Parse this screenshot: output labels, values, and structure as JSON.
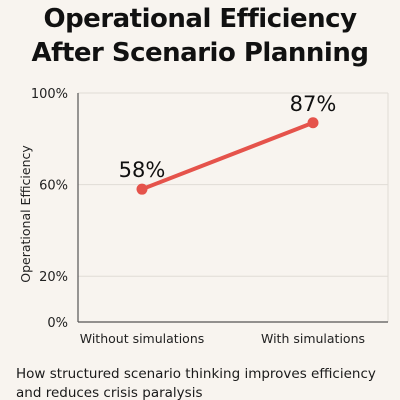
{
  "header": {
    "title_line_1": "Operational Efficiency",
    "title_line_2": "After Scenario Planning"
  },
  "caption": {
    "line_1": "How structured scenario thinking improves efficiency",
    "line_2": "and reduces crisis paralysis"
  },
  "colors": {
    "background": "#f8f4ef",
    "line": "#e5534b",
    "grid": "#e0dcd6",
    "axis": "#555555",
    "text": "#111111"
  },
  "chart_data": {
    "type": "line",
    "title": "Operational Efficiency After Scenario Planning",
    "xlabel": "",
    "ylabel": "Operational Efficiency",
    "categories": [
      "Without simulations",
      "With simulations"
    ],
    "series": [
      {
        "values": [
          58,
          87
        ],
        "data_labels": [
          "58%",
          "87%"
        ]
      }
    ],
    "ylim": [
      0,
      100
    ],
    "y_ticks": [
      0,
      20,
      60,
      100
    ],
    "y_tick_labels": [
      "0%",
      "20%",
      "60%",
      "100%"
    ],
    "grid": true
  }
}
